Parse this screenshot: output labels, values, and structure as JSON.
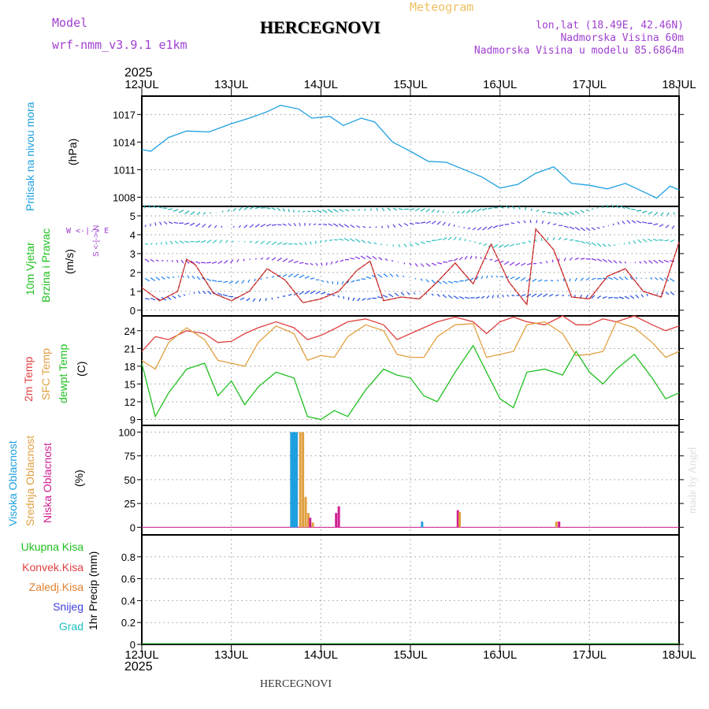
{
  "header": {
    "model_label": "Model",
    "model_value": "wrf-nmm_v3.9.1 e1km",
    "title": "HERCEGNOVI",
    "meteogram": "Meteogram",
    "coords": "lon,lat (18.49E, 42.46N)",
    "elevation": "Nadmorska Visina 60m",
    "model_elevation": "Nadmorska Visina u modelu 85.6864m",
    "year_top": "2025",
    "year_bottom": "2025",
    "footer_title": "HERCEGNOVI",
    "watermark": "made by Angel"
  },
  "colors": {
    "pressure": "#1ea0e0",
    "temp2m": "#e04040",
    "sfctemp": "#e0a040",
    "dewpt": "#20c020",
    "cloud_high": "#1ea0e0",
    "cloud_mid": "#e0a040",
    "cloud_low": "#d02090",
    "wind_label": "#20c020",
    "purple": "#a040d0"
  },
  "chart_data": [
    {
      "type": "line",
      "name": "pressure",
      "ylabel": "Pritisak na nivou mora",
      "unit": "(hPa)",
      "x_categories": [
        "12JUL",
        "13JUL",
        "14JUL",
        "15JUL",
        "16JUL",
        "17JUL",
        "18JUL"
      ],
      "ylim": [
        1007,
        1019
      ],
      "yticks": [
        1008,
        1011,
        1014,
        1017
      ],
      "x_days": [
        0,
        0.1,
        0.3,
        0.5,
        0.75,
        1.0,
        1.2,
        1.4,
        1.55,
        1.75,
        1.9,
        2.1,
        2.25,
        2.45,
        2.6,
        2.8,
        3.0,
        3.2,
        3.4,
        3.6,
        3.8,
        4.0,
        4.2,
        4.4,
        4.6,
        4.8,
        5.0,
        5.2,
        5.4,
        5.6,
        5.75,
        5.9,
        6.0
      ],
      "values": [
        1013.2,
        1013.0,
        1014.5,
        1015.2,
        1015.1,
        1016.0,
        1016.6,
        1017.3,
        1018.0,
        1017.6,
        1016.6,
        1016.8,
        1015.8,
        1016.6,
        1016.2,
        1014.0,
        1013.0,
        1011.9,
        1011.8,
        1011.0,
        1010.2,
        1009.0,
        1009.4,
        1010.6,
        1011.3,
        1009.5,
        1009.3,
        1008.9,
        1009.5,
        1008.6,
        1007.9,
        1009.2,
        1008.8
      ]
    },
    {
      "type": "line",
      "name": "wind",
      "ylabel": "10m Vjetar Brzina i Pravac",
      "unit": "(m/s)",
      "compass": "W <-|-> E",
      "compass_v": "S <-|-> N",
      "ylim": [
        -0.3,
        5.5
      ],
      "yticks": [
        0,
        1,
        2,
        3,
        4,
        5
      ],
      "x_days": [
        0,
        0.2,
        0.4,
        0.5,
        0.6,
        0.8,
        1.0,
        1.2,
        1.4,
        1.6,
        1.8,
        2.0,
        2.2,
        2.4,
        2.55,
        2.7,
        2.9,
        3.1,
        3.3,
        3.5,
        3.7,
        3.9,
        4.1,
        4.3,
        4.4,
        4.6,
        4.8,
        5.0,
        5.2,
        5.4,
        5.6,
        5.8,
        6.0
      ],
      "values": [
        1.2,
        0.5,
        1.0,
        2.7,
        2.4,
        0.9,
        0.5,
        1.0,
        2.2,
        1.6,
        0.4,
        0.6,
        1.0,
        2.1,
        2.6,
        0.5,
        0.7,
        0.6,
        1.5,
        2.5,
        1.4,
        3.5,
        1.5,
        0.3,
        4.3,
        3.2,
        0.7,
        0.6,
        1.8,
        2.2,
        1.0,
        0.7,
        3.6
      ]
    },
    {
      "type": "line",
      "name": "temperature",
      "ylabel": "2m Temp SFC Temp dewpt Temp",
      "series_names": [
        "2m Temp",
        "SFC Temp",
        "dewpt Temp"
      ],
      "unit": "(C)",
      "ylim": [
        8,
        26.5
      ],
      "yticks": [
        9,
        12,
        15,
        18,
        21,
        24
      ],
      "x_days": [
        0,
        0.15,
        0.3,
        0.5,
        0.7,
        0.85,
        1.0,
        1.15,
        1.3,
        1.5,
        1.7,
        1.85,
        2.0,
        2.15,
        2.3,
        2.5,
        2.7,
        2.85,
        3.0,
        3.15,
        3.3,
        3.5,
        3.7,
        3.85,
        4.0,
        4.15,
        4.3,
        4.5,
        4.7,
        4.85,
        5.0,
        5.15,
        5.3,
        5.5,
        5.7,
        5.85,
        6.0
      ],
      "series": [
        {
          "name": "2m Temp",
          "values": [
            20.5,
            23.0,
            22.5,
            24.0,
            23.5,
            22.0,
            22.2,
            23.5,
            24.5,
            25.5,
            24.5,
            22.5,
            23.2,
            24.3,
            25.5,
            26.0,
            25.0,
            22.5,
            23.5,
            24.5,
            25.5,
            26.3,
            25.5,
            23.5,
            25.5,
            26.3,
            25.5,
            25.0,
            26.5,
            25.0,
            25.0,
            26.0,
            25.5,
            26.5,
            25.0,
            24.0,
            24.8
          ]
        },
        {
          "name": "SFC Temp",
          "values": [
            19.0,
            17.5,
            22.0,
            24.5,
            22.5,
            19.0,
            18.5,
            18.0,
            22.0,
            24.8,
            23.5,
            19.0,
            19.8,
            19.5,
            23.0,
            25.0,
            24.0,
            20.0,
            19.5,
            19.5,
            23.0,
            25.0,
            25.2,
            19.5,
            20.0,
            20.5,
            25.0,
            25.5,
            23.5,
            19.8,
            20.0,
            20.5,
            25.5,
            24.5,
            22.0,
            19.5,
            20.5
          ]
        },
        {
          "name": "dewpt Temp",
          "values": [
            18.5,
            9.5,
            13.5,
            17.5,
            18.5,
            13.0,
            15.5,
            11.5,
            14.5,
            17.0,
            16.0,
            9.5,
            9.0,
            10.5,
            9.5,
            14.0,
            17.5,
            16.5,
            16.0,
            13.0,
            12.0,
            17.0,
            21.5,
            17.0,
            12.5,
            11.0,
            17.0,
            17.5,
            16.5,
            20.5,
            17.0,
            15.0,
            17.5,
            20.0,
            16.0,
            12.5,
            13.5
          ]
        }
      ]
    },
    {
      "type": "bar",
      "name": "cloud",
      "ylabel": "Visoka Oblacnost Srednja Oblacnost Niska Oblacnost",
      "series_names": [
        "Visoka Oblacnost",
        "Srednja Oblacnost",
        "Niska Oblacnost"
      ],
      "unit": "(%)",
      "ylim": [
        -8,
        107
      ],
      "yticks": [
        0,
        25,
        50,
        75,
        100
      ],
      "bars": [
        {
          "s": 0,
          "x": 1.67,
          "v": 100
        },
        {
          "s": 0,
          "x": 1.69,
          "v": 100
        },
        {
          "s": 0,
          "x": 1.71,
          "v": 100
        },
        {
          "s": 0,
          "x": 1.73,
          "v": 100
        },
        {
          "s": 1,
          "x": 1.77,
          "v": 100
        },
        {
          "s": 1,
          "x": 1.8,
          "v": 100
        },
        {
          "s": 1,
          "x": 1.83,
          "v": 32
        },
        {
          "s": 1,
          "x": 1.86,
          "v": 15
        },
        {
          "s": 2,
          "x": 1.88,
          "v": 10
        },
        {
          "s": 1,
          "x": 1.91,
          "v": 5
        },
        {
          "s": 2,
          "x": 2.17,
          "v": 15
        },
        {
          "s": 2,
          "x": 2.2,
          "v": 22
        },
        {
          "s": 0,
          "x": 3.13,
          "v": 6
        },
        {
          "s": 2,
          "x": 3.53,
          "v": 18
        },
        {
          "s": 1,
          "x": 3.55,
          "v": 16
        },
        {
          "s": 1,
          "x": 4.63,
          "v": 6
        },
        {
          "s": 2,
          "x": 4.66,
          "v": 6
        }
      ]
    },
    {
      "type": "line",
      "name": "precipitation",
      "ylabel": "1hr Precip (mm)",
      "legend": [
        "Ukupna Kisa",
        "Konvek.Kisa",
        "Zaledj.Kisa",
        "Snijeg",
        "Grad"
      ],
      "legend_colors": [
        "#20c020",
        "#e04040",
        "#e08030",
        "#4040e0",
        "#20c0c0"
      ],
      "ylim": [
        0,
        1.0
      ],
      "yticks": [
        0,
        0.2,
        0.4,
        0.6,
        0.8
      ],
      "x_categories": [
        "12JUL",
        "13JUL",
        "14JUL",
        "15JUL",
        "16JUL",
        "17JUL",
        "18JUL"
      ],
      "values": [
        0
      ]
    }
  ]
}
